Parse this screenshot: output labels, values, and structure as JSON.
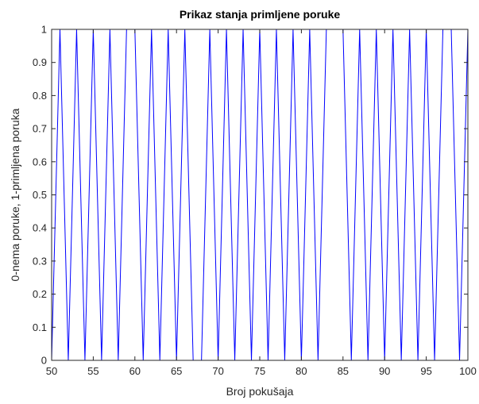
{
  "chart_data": {
    "type": "line",
    "title": "Prikaz stanja primljene poruke",
    "xlabel": "Broj pokušaja",
    "ylabel": "0-nema poruke, 1-primljena poruka",
    "xlim": [
      50,
      100
    ],
    "ylim": [
      0,
      1
    ],
    "xticks": [
      50,
      55,
      60,
      65,
      70,
      75,
      80,
      85,
      90,
      95,
      100
    ],
    "yticks": [
      0,
      0.1,
      0.2,
      0.3,
      0.4,
      0.5,
      0.6,
      0.7,
      0.8,
      0.9,
      1
    ],
    "ytick_labels": [
      "0",
      "0.1",
      "0.2",
      "0.3",
      "0.4",
      "0.5",
      "0.6",
      "0.7",
      "0.8",
      "0.9",
      "1"
    ],
    "grid": false,
    "line_color": "#0000ff",
    "series": [
      {
        "x": [
          50,
          51,
          52,
          53,
          54,
          55,
          56,
          57,
          58,
          59,
          60,
          61,
          62,
          63,
          64,
          65,
          66,
          67,
          68,
          69,
          70,
          71,
          72,
          73,
          74,
          75,
          76,
          77,
          78,
          79,
          80,
          81,
          82,
          83,
          84,
          85,
          86,
          87,
          88,
          89,
          90,
          91,
          92,
          93,
          94,
          95,
          96,
          97,
          98,
          99,
          100
        ],
        "y": [
          0,
          1,
          0,
          1,
          0,
          1,
          0,
          1,
          0,
          1,
          1,
          0,
          1,
          0,
          1,
          0,
          1,
          0,
          0,
          1,
          0,
          1,
          0,
          1,
          0,
          1,
          0,
          1,
          0,
          1,
          0,
          1,
          0,
          1,
          1,
          1,
          0,
          1,
          0,
          1,
          0,
          1,
          0,
          1,
          0,
          1,
          0,
          1,
          1,
          0,
          1
        ]
      }
    ]
  }
}
